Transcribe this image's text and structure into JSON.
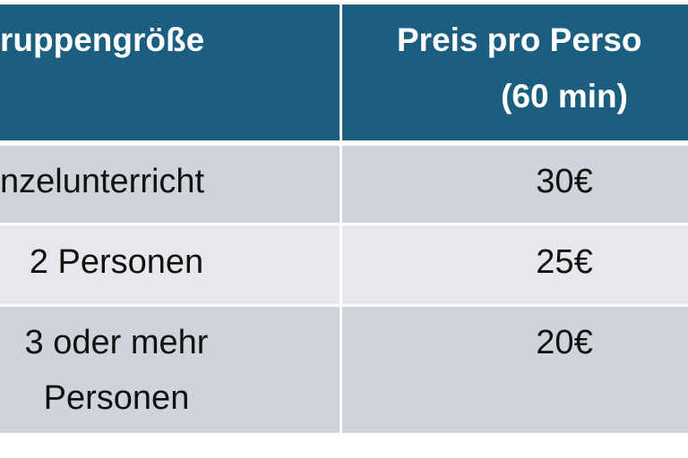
{
  "table": {
    "header": [
      [
        "ruppengröße"
      ],
      [
        "Preis pro Perso",
        "(60 min)"
      ]
    ],
    "rows": [
      [
        [
          "nzelunterricht"
        ],
        [
          "30€"
        ]
      ],
      [
        [
          "2 Personen"
        ],
        [
          "25€"
        ]
      ],
      [
        [
          "3 oder mehr",
          "Personen"
        ],
        [
          "20€"
        ]
      ]
    ]
  }
}
